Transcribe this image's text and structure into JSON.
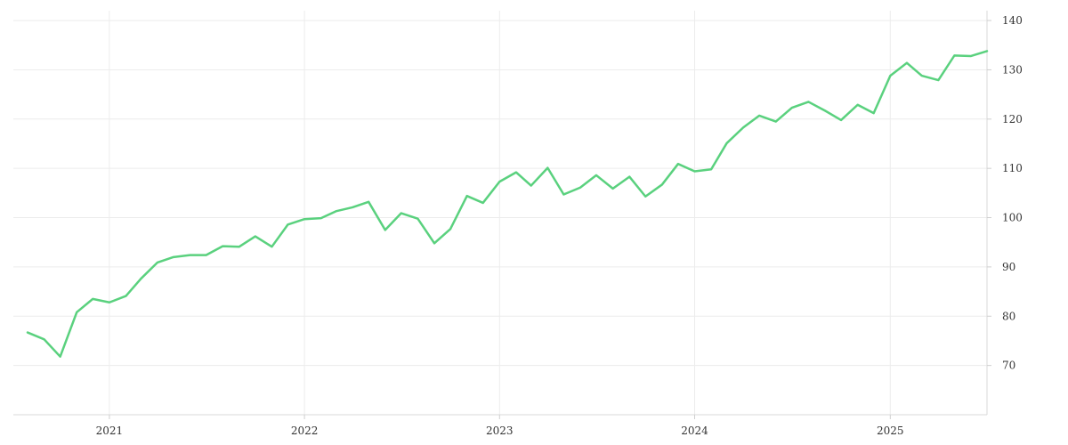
{
  "chart_data": {
    "type": "line",
    "title": "",
    "xlabel": "",
    "ylabel": "",
    "colors": {
      "series": "#5ad17e",
      "grid": "#ececec",
      "axis": "#d9d9d9",
      "text": "#333333"
    },
    "grid": true,
    "y_axis_side": "right",
    "ylim": [
      60,
      142
    ],
    "xlim": [
      "2020-08-01",
      "2025-07-01"
    ],
    "y_ticks": [
      70,
      80,
      90,
      100,
      110,
      120,
      130,
      140
    ],
    "x_ticks": [
      {
        "date": "2021-01-01",
        "label": "2021"
      },
      {
        "date": "2022-01-01",
        "label": "2022"
      },
      {
        "date": "2023-01-01",
        "label": "2023"
      },
      {
        "date": "2024-01-01",
        "label": "2024"
      },
      {
        "date": "2025-01-01",
        "label": "2025"
      }
    ],
    "series": [
      {
        "x": [
          "2020-08",
          "2020-09",
          "2020-10",
          "2020-11",
          "2020-12",
          "2021-01",
          "2021-02",
          "2021-03",
          "2021-04",
          "2021-05",
          "2021-06",
          "2021-07",
          "2021-08",
          "2021-09",
          "2021-10",
          "2021-11",
          "2021-12",
          "2022-01",
          "2022-02",
          "2022-03",
          "2022-04",
          "2022-05",
          "2022-06",
          "2022-07",
          "2022-08",
          "2022-09",
          "2022-10",
          "2022-11",
          "2022-12",
          "2023-01",
          "2023-02",
          "2023-03",
          "2023-04",
          "2023-05",
          "2023-06",
          "2023-07",
          "2023-08",
          "2023-09",
          "2023-10",
          "2023-11",
          "2023-12",
          "2024-01",
          "2024-02",
          "2024-03",
          "2024-04",
          "2024-05",
          "2024-06",
          "2024-07",
          "2024-08",
          "2024-09",
          "2024-10",
          "2024-11",
          "2024-12",
          "2025-01",
          "2025-02",
          "2025-03",
          "2025-04",
          "2025-05",
          "2025-06",
          "2025-07"
        ],
        "values": [
          76.7,
          75.3,
          71.8,
          80.8,
          83.5,
          82.8,
          84.1,
          87.6,
          90.9,
          92.0,
          92.4,
          92.4,
          94.2,
          94.1,
          96.2,
          94.1,
          98.6,
          99.7,
          99.9,
          101.3,
          102.1,
          103.2,
          97.5,
          100.9,
          99.8,
          94.8,
          97.7,
          104.4,
          103.0,
          107.3,
          109.2,
          106.5,
          110.1,
          104.7,
          106.1,
          108.6,
          105.9,
          108.3,
          104.3,
          106.7,
          110.9,
          109.4,
          109.8,
          115.1,
          118.3,
          120.7,
          119.5,
          122.3,
          123.5,
          121.7,
          119.8,
          122.9,
          121.2,
          128.8,
          131.4,
          128.8,
          127.9,
          132.9,
          132.8,
          133.8
        ]
      }
    ]
  }
}
